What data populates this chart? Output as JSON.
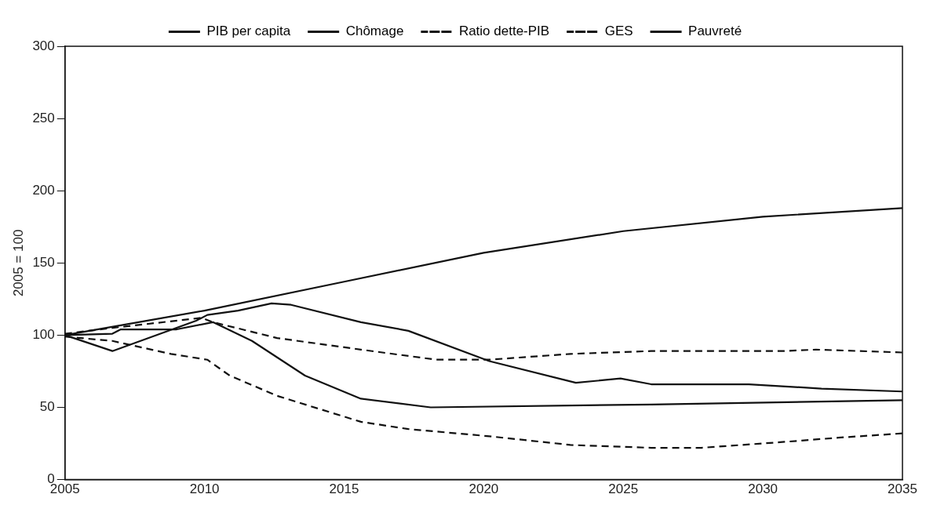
{
  "chart_data": {
    "type": "line",
    "ylabel": "2005 = 100",
    "xlim": [
      2005,
      2035
    ],
    "xticks": [
      2005,
      2010,
      2015,
      2020,
      2025,
      2030,
      2035
    ],
    "ylim": [
      0,
      300
    ],
    "yticks": [
      0,
      50,
      100,
      150,
      200,
      250,
      300
    ],
    "grid": false,
    "legend": "top",
    "marker": "none",
    "series": [
      {
        "name": "PIB per capita",
        "color": "#111111",
        "line_style": "solid",
        "x": [
          2005,
          2010,
          2015,
          2020,
          2025,
          2030,
          2035
        ],
        "values": [
          100,
          117,
          137,
          157,
          172,
          182,
          188
        ]
      },
      {
        "name": "Chômage",
        "color": "#111111",
        "line_style": "solid",
        "x": [
          2005,
          2006.7,
          2009.7,
          2010.1,
          2011.2,
          2012.4,
          2013.1,
          2015.6,
          2017.3,
          2020.2,
          2023.3,
          2024.9,
          2026,
          2029.5,
          2032.1,
          2035
        ],
        "values": [
          100,
          89,
          110,
          114,
          117,
          122,
          121,
          109,
          103,
          82,
          67,
          70,
          66,
          66,
          63,
          61
        ]
      },
      {
        "name": "Ratio dette-PIB",
        "color": "#111111",
        "line_style": "dashed",
        "x": [
          2005,
          2006.7,
          2009.9,
          2010.3,
          2012.6,
          2015.6,
          2018.3,
          2020.2,
          2023.1,
          2026,
          2029.7,
          2030.7,
          2031.9,
          2035
        ],
        "values": [
          101,
          105,
          112,
          109,
          98,
          90,
          83,
          83,
          87,
          89,
          89,
          89,
          90,
          88
        ]
      },
      {
        "name": "GES",
        "color": "#111111",
        "line_style": "dashed",
        "x": [
          2005,
          2006.7,
          2008.8,
          2010.1,
          2010.9,
          2012.6,
          2015.6,
          2017.3,
          2020.2,
          2023.1,
          2026,
          2027.8,
          2030.7,
          2032.7,
          2035
        ],
        "values": [
          99,
          96,
          87,
          83,
          72,
          58,
          40,
          35,
          30,
          24,
          22,
          22,
          26,
          29,
          32
        ]
      },
      {
        "name": "Pauvreté",
        "color": "#111111",
        "line_style": "solid",
        "x": [
          2005,
          2006.7,
          2007,
          2009,
          2010.3,
          2011.7,
          2013.6,
          2015.6,
          2018.1,
          2026,
          2035
        ],
        "values": [
          100,
          101,
          104,
          104,
          109,
          96,
          72,
          56,
          50,
          52,
          55
        ]
      }
    ]
  }
}
